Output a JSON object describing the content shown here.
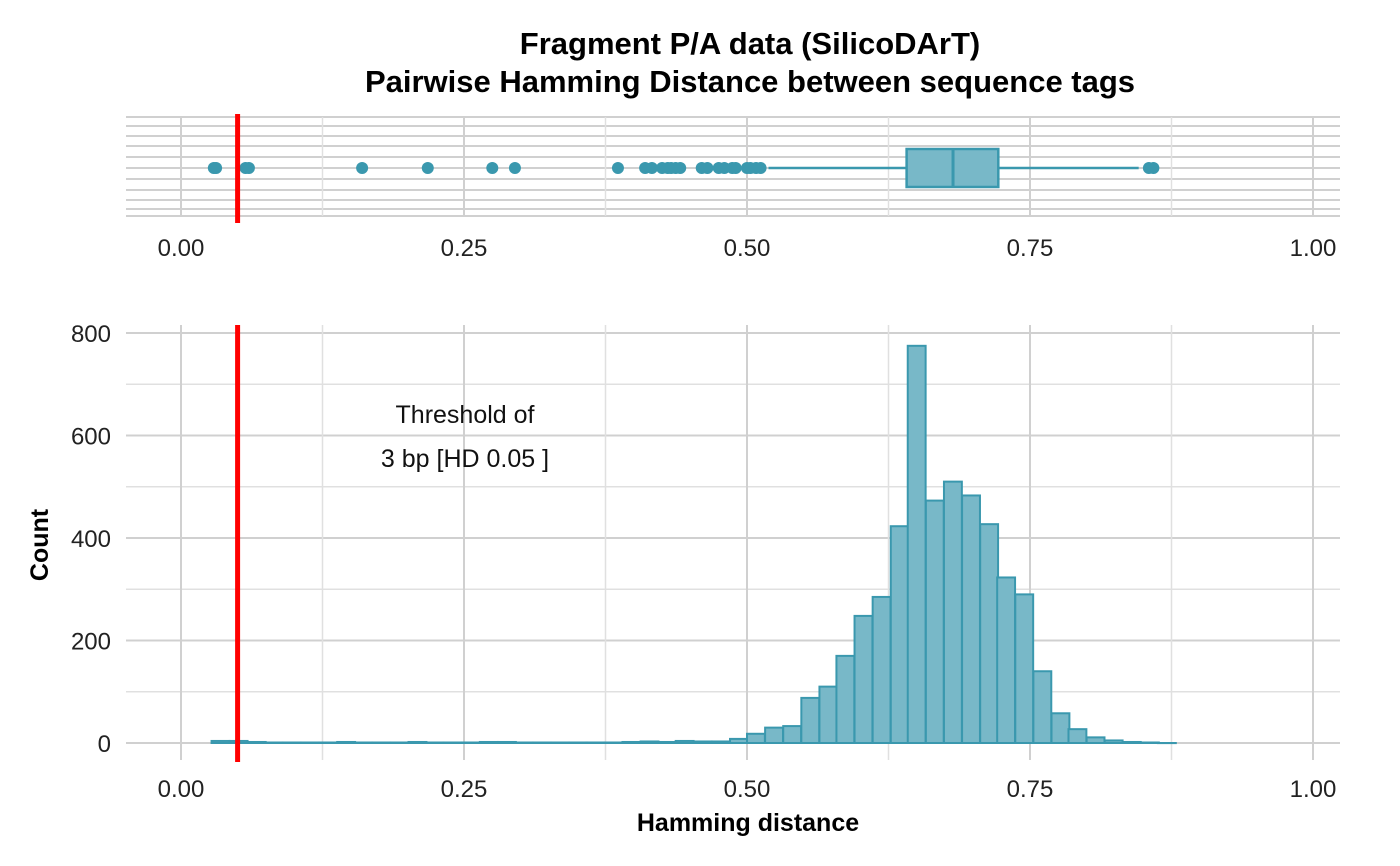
{
  "chart_data": {
    "type": "bar",
    "title": "Fragment P/A data (SilicoDArT)",
    "subtitle": "Pairwise Hamming Distance between sequence tags",
    "xlabel": "Hamming distance",
    "ylabel": "Count",
    "xlim": [
      0,
      1
    ],
    "ylim": [
      0,
      800
    ],
    "x_ticks": [
      "0.00",
      "0.25",
      "0.50",
      "0.75",
      "1.00"
    ],
    "y_ticks": [
      "0",
      "200",
      "400",
      "600",
      "800"
    ],
    "grid": true,
    "threshold": {
      "value": 0.05,
      "color": "#ff0000",
      "label_line1": "Threshold of",
      "label_line2": "3 bp [HD 0.05 ]"
    },
    "fill_color": "#78b8c8",
    "edge_color": "#3a98ae",
    "bin_width": 0.0158,
    "histogram": {
      "bin_start": [
        0.027,
        0.043,
        0.059,
        0.074,
        0.09,
        0.106,
        0.122,
        0.138,
        0.153,
        0.169,
        0.185,
        0.201,
        0.216,
        0.232,
        0.248,
        0.264,
        0.28,
        0.295,
        0.311,
        0.327,
        0.343,
        0.358,
        0.374,
        0.39,
        0.406,
        0.422,
        0.437,
        0.453,
        0.469,
        0.485,
        0.5,
        0.516,
        0.532,
        0.548,
        0.564,
        0.579,
        0.595,
        0.611,
        0.627,
        0.642,
        0.658,
        0.674,
        0.69,
        0.706,
        0.721,
        0.737,
        0.753,
        0.769,
        0.784,
        0.8,
        0.816,
        0.832,
        0.848,
        0.863
      ],
      "counts": [
        4,
        4,
        2,
        1,
        1,
        1,
        1,
        2,
        1,
        1,
        1,
        2,
        1,
        1,
        1,
        2,
        2,
        1,
        1,
        1,
        1,
        1,
        1,
        2,
        3,
        2,
        4,
        3,
        3,
        8,
        18,
        30,
        33,
        88,
        110,
        170,
        248,
        285,
        423,
        775,
        473,
        510,
        483,
        427,
        323,
        290,
        140,
        58,
        27,
        11,
        5,
        2,
        1,
        0
      ]
    },
    "boxplot": {
      "q1": 0.641,
      "median": 0.682,
      "q3": 0.722,
      "whisker_low": 0.519,
      "whisker_high": 0.846,
      "outliers": [
        0.029,
        0.031,
        0.057,
        0.06,
        0.16,
        0.218,
        0.275,
        0.295,
        0.386,
        0.41,
        0.416,
        0.425,
        0.43,
        0.433,
        0.437,
        0.441,
        0.46,
        0.465,
        0.475,
        0.48,
        0.487,
        0.49,
        0.5,
        0.503,
        0.508,
        0.512,
        0.855,
        0.859
      ]
    }
  }
}
